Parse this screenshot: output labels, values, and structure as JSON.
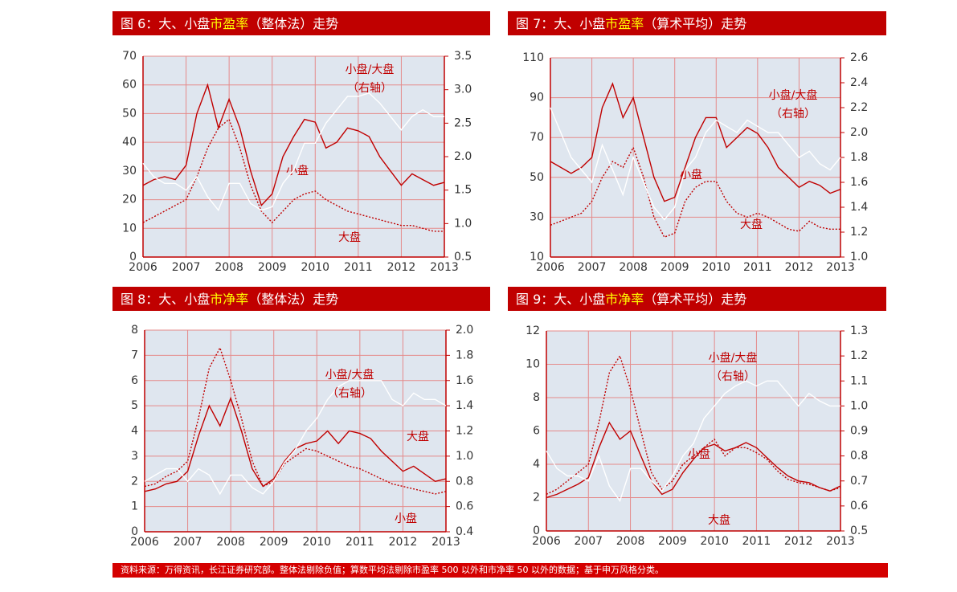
{
  "chart_data": [
    {
      "type": "line",
      "title": [
        "图 6：大、小盘",
        "市盈率",
        "（整体法）走势"
      ],
      "annotation": "（右轴）",
      "x": [
        2006,
        2006.25,
        2006.5,
        2006.75,
        2007,
        2007.25,
        2007.5,
        2007.75,
        2008,
        2008.25,
        2008.5,
        2008.75,
        2009,
        2009.25,
        2009.5,
        2009.75,
        2010,
        2010.25,
        2010.5,
        2010.75,
        2011,
        2011.25,
        2011.5,
        2011.75,
        2012,
        2012.25,
        2012.5,
        2012.75,
        2013
      ],
      "xlim": [
        2006,
        2013
      ],
      "xticks": [
        2006,
        2007,
        2008,
        2009,
        2010,
        2011,
        2012,
        2013
      ],
      "ylim": [
        0,
        70
      ],
      "yticks": [
        0,
        10,
        20,
        30,
        40,
        50,
        60,
        70
      ],
      "y2lim": [
        0.5,
        3.5
      ],
      "y2ticks": [
        0.5,
        {
          "value": 1,
          "label": "1.0"
        },
        1.5,
        {
          "value": 2,
          "label": "2.0"
        },
        2.5,
        {
          "value": 3,
          "label": "3.0"
        },
        3.5
      ],
      "grid": true,
      "series": [
        {
          "name": "小盘",
          "color": "#c00000",
          "style": "solid",
          "values": [
            25,
            27,
            28,
            27,
            32,
            50,
            60,
            45,
            55,
            45,
            30,
            18,
            22,
            35,
            42,
            48,
            47,
            38,
            40,
            45,
            44,
            42,
            35,
            30,
            25,
            29,
            27,
            25,
            26
          ]
        },
        {
          "name": "大盘",
          "color": "#c00000",
          "style": "dotted",
          "values": [
            12,
            14,
            16,
            18,
            20,
            28,
            38,
            45,
            48,
            38,
            25,
            16,
            12,
            16,
            20,
            22,
            23,
            20,
            18,
            16,
            15,
            14,
            13,
            12,
            11,
            11,
            10,
            9,
            9
          ]
        },
        {
          "name": "小盘/大盘",
          "color": "#ffffff",
          "style": "solid",
          "axis": "y2",
          "values": [
            1.9,
            1.7,
            1.6,
            1.6,
            1.5,
            1.7,
            1.4,
            1.2,
            1.6,
            1.6,
            1.3,
            1.2,
            1.25,
            1.6,
            1.8,
            2.2,
            2.2,
            2.5,
            2.7,
            2.9,
            2.9,
            2.95,
            2.8,
            2.6,
            2.4,
            2.6,
            2.7,
            2.6,
            2.6
          ]
        }
      ]
    },
    {
      "type": "line",
      "title": [
        "图 7：大、小盘",
        "市盈率",
        "（算术平均）走势"
      ],
      "annotation": "（右轴）",
      "x": [
        2006,
        2006.25,
        2006.5,
        2006.75,
        2007,
        2007.25,
        2007.5,
        2007.75,
        2008,
        2008.25,
        2008.5,
        2008.75,
        2009,
        2009.25,
        2009.5,
        2009.75,
        2010,
        2010.25,
        2010.5,
        2010.75,
        2011,
        2011.25,
        2011.5,
        2011.75,
        2012,
        2012.25,
        2012.5,
        2012.75,
        2013
      ],
      "xlim": [
        2006,
        2013
      ],
      "xticks": [
        2006,
        2007,
        2008,
        2009,
        2010,
        2011,
        2012,
        2013
      ],
      "ylim": [
        10,
        110
      ],
      "yticks": [
        10,
        30,
        50,
        70,
        90,
        110
      ],
      "y2lim": [
        1,
        2.6
      ],
      "y2ticks": [
        {
          "value": 1,
          "label": "1.0"
        },
        1.2,
        1.4,
        1.6,
        1.8,
        {
          "value": 2,
          "label": "2.0"
        },
        2.2,
        2.4,
        2.6
      ],
      "grid": true,
      "series": [
        {
          "name": "小盘",
          "color": "#c00000",
          "style": "solid",
          "values": [
            58,
            55,
            52,
            55,
            60,
            85,
            97,
            80,
            90,
            70,
            50,
            38,
            40,
            55,
            70,
            80,
            80,
            65,
            70,
            75,
            72,
            65,
            55,
            50,
            45,
            48,
            46,
            42,
            44
          ]
        },
        {
          "name": "大盘",
          "color": "#c00000",
          "style": "dotted",
          "values": [
            26,
            28,
            30,
            32,
            38,
            50,
            58,
            55,
            65,
            50,
            30,
            20,
            22,
            38,
            45,
            48,
            48,
            38,
            32,
            30,
            32,
            30,
            27,
            24,
            23,
            28,
            25,
            24,
            24
          ]
        },
        {
          "name": "小盘/大盘",
          "color": "#ffffff",
          "style": "solid",
          "axis": "y2",
          "values": [
            2.2,
            2.0,
            1.8,
            1.7,
            1.6,
            1.9,
            1.7,
            1.5,
            1.8,
            1.6,
            1.4,
            1.3,
            1.4,
            1.7,
            1.8,
            2.0,
            2.1,
            2.05,
            2.0,
            2.1,
            2.05,
            2.0,
            2.0,
            1.9,
            1.8,
            1.85,
            1.75,
            1.7,
            1.8
          ]
        }
      ]
    },
    {
      "type": "line",
      "title": [
        "图 8：大、小盘",
        "市净率",
        "（整体法）走势"
      ],
      "annotation": "（右轴）",
      "x": [
        2006,
        2006.25,
        2006.5,
        2006.75,
        2007,
        2007.25,
        2007.5,
        2007.75,
        2008,
        2008.25,
        2008.5,
        2008.75,
        2009,
        2009.25,
        2009.5,
        2009.75,
        2010,
        2010.25,
        2010.5,
        2010.75,
        2011,
        2011.25,
        2011.5,
        2011.75,
        2012,
        2012.25,
        2012.5,
        2012.75,
        2013
      ],
      "xlim": [
        2006,
        2013
      ],
      "xticks": [
        2006,
        2007,
        2008,
        2009,
        2010,
        2011,
        2012,
        2013
      ],
      "ylim": [
        0,
        8
      ],
      "yticks": [
        0,
        1,
        2,
        3,
        4,
        5,
        6,
        7,
        8
      ],
      "y2lim": [
        0.4,
        2
      ],
      "y2ticks": [
        0.4,
        0.6,
        0.8,
        {
          "value": 1,
          "label": "1.0"
        },
        1.2,
        1.4,
        1.6,
        1.8,
        {
          "value": 2,
          "label": "2.0"
        }
      ],
      "grid": true,
      "series": [
        {
          "name": "大盘",
          "color": "#c00000",
          "style": "solid",
          "values": [
            1.6,
            1.7,
            1.9,
            2.0,
            2.4,
            3.8,
            5.0,
            4.2,
            5.3,
            4.0,
            2.5,
            1.8,
            2.1,
            2.8,
            3.3,
            3.5,
            3.6,
            4.0,
            3.5,
            4.0,
            3.9,
            3.7,
            3.2,
            2.8,
            2.4,
            2.6,
            2.3,
            2.0,
            2.1
          ]
        },
        {
          "name": "小盘",
          "color": "#c00000",
          "style": "dotted",
          "values": [
            1.8,
            1.9,
            2.2,
            2.4,
            2.8,
            4.5,
            6.5,
            7.3,
            6.0,
            4.5,
            2.8,
            1.8,
            2.0,
            2.7,
            3.0,
            3.3,
            3.2,
            3.0,
            2.8,
            2.6,
            2.5,
            2.3,
            2.1,
            1.9,
            1.8,
            1.7,
            1.6,
            1.5,
            1.6
          ]
        },
        {
          "name": "小盘/大盘",
          "color": "#ffffff",
          "style": "solid",
          "axis": "y2",
          "values": [
            0.8,
            0.85,
            0.9,
            0.9,
            0.8,
            0.9,
            0.85,
            0.7,
            0.85,
            0.85,
            0.75,
            0.7,
            0.8,
            0.95,
            1.05,
            1.2,
            1.3,
            1.45,
            1.55,
            1.6,
            1.6,
            1.6,
            1.6,
            1.45,
            1.4,
            1.5,
            1.45,
            1.45,
            1.4
          ]
        }
      ]
    },
    {
      "type": "line",
      "title": [
        "图 9：大、小盘",
        "市净率",
        "（算术平均）走势"
      ],
      "annotation": "（右轴）",
      "x": [
        2006,
        2006.25,
        2006.5,
        2006.75,
        2007,
        2007.25,
        2007.5,
        2007.75,
        2008,
        2008.25,
        2008.5,
        2008.75,
        2009,
        2009.25,
        2009.5,
        2009.75,
        2010,
        2010.25,
        2010.5,
        2010.75,
        2011,
        2011.25,
        2011.5,
        2011.75,
        2012,
        2012.25,
        2012.5,
        2012.75,
        2013
      ],
      "xlim": [
        2006,
        2013
      ],
      "xticks": [
        2006,
        2007,
        2008,
        2009,
        2010,
        2011,
        2012,
        2013
      ],
      "ylim": [
        0,
        12
      ],
      "yticks": [
        0,
        2,
        4,
        6,
        8,
        10,
        12
      ],
      "y2lim": [
        0.5,
        1.3
      ],
      "y2ticks": [
        0.5,
        0.6,
        0.7,
        0.8,
        0.9,
        {
          "value": 1,
          "label": "1.0"
        },
        1.1,
        1.2,
        1.3
      ],
      "grid": true,
      "series": [
        {
          "name": "小盘",
          "color": "#c00000",
          "style": "solid",
          "values": [
            2.0,
            2.2,
            2.5,
            2.8,
            3.2,
            5.0,
            6.5,
            5.5,
            6.0,
            4.5,
            3.0,
            2.2,
            2.5,
            3.5,
            4.3,
            5.0,
            5.2,
            4.8,
            5.0,
            5.3,
            5.0,
            4.4,
            3.8,
            3.3,
            3.0,
            2.9,
            2.6,
            2.4,
            2.7
          ]
        },
        {
          "name": "大盘",
          "color": "#c00000",
          "style": "dotted",
          "values": [
            2.2,
            2.5,
            3.0,
            3.5,
            4.0,
            6.5,
            9.5,
            10.5,
            8.5,
            6.0,
            3.5,
            2.5,
            3.0,
            4.0,
            4.5,
            5.0,
            5.5,
            4.5,
            5.0,
            5.0,
            4.7,
            4.3,
            3.6,
            3.1,
            2.9,
            2.8,
            2.6,
            2.4,
            2.6
          ]
        },
        {
          "name": "小盘/大盘",
          "color": "#ffffff",
          "style": "solid",
          "axis": "y2",
          "values": [
            0.82,
            0.75,
            0.72,
            0.72,
            0.7,
            0.8,
            0.68,
            0.62,
            0.75,
            0.75,
            0.7,
            0.66,
            0.72,
            0.8,
            0.85,
            0.95,
            1.0,
            1.05,
            1.08,
            1.1,
            1.08,
            1.1,
            1.1,
            1.05,
            1.0,
            1.05,
            1.02,
            1.0,
            1.0
          ]
        }
      ]
    }
  ],
  "source": "资料来源：万得资讯，长江证券研究部。整体法剔除负值；算数平均法剔除市盈率 500 以外和市净率 50 以外的数据；基于申万风格分类。"
}
